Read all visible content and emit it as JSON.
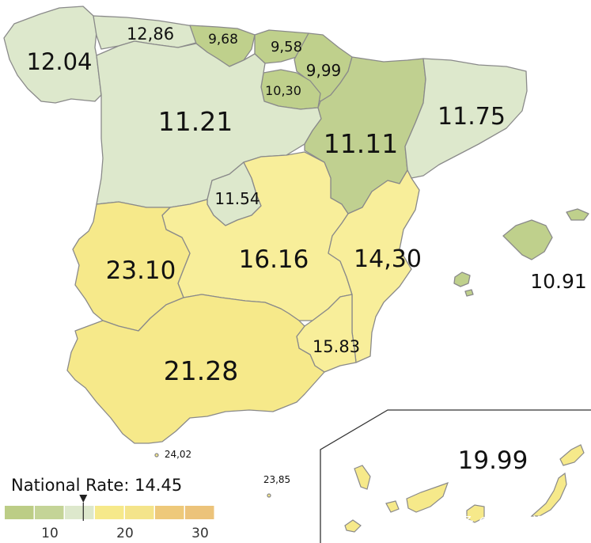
{
  "colors": {
    "rate_below_10": "#bfd08c",
    "rate_10_to_12": "#dde8cc",
    "rate_15_to_20": "#f8ee9a",
    "rate_20_to_25": "#f6e98a",
    "legend_bins": [
      "#bccd86",
      "#c4d497",
      "#dde8cc",
      "#f6e98a",
      "#f4e48a",
      "#eec97a",
      "#ecc37a"
    ],
    "outline": "#8a8a8a",
    "text": "#111111"
  },
  "regions": [
    {
      "name": "Galicia",
      "label": "12.04"
    },
    {
      "name": "Asturias",
      "label": "12,86"
    },
    {
      "name": "Cantabria",
      "label": "9,68"
    },
    {
      "name": "País Vasco",
      "label": "9,58"
    },
    {
      "name": "Navarra",
      "label": "9,99"
    },
    {
      "name": "La Rioja",
      "label": "10,30"
    },
    {
      "name": "Castilla y León",
      "label": "11.21"
    },
    {
      "name": "Aragón",
      "label": "11.11"
    },
    {
      "name": "Cataluña",
      "label": "11.75"
    },
    {
      "name": "Madrid",
      "label": "11.54"
    },
    {
      "name": "Extremadura",
      "label": "23.10"
    },
    {
      "name": "Castilla-La Mancha",
      "label": "16.16"
    },
    {
      "name": "Comunidad Valenciana",
      "label": "14,30"
    },
    {
      "name": "Islas Baleares",
      "label": "10.91"
    },
    {
      "name": "Región de Murcia",
      "label": "15.83"
    },
    {
      "name": "Andalucía",
      "label": "21.28"
    },
    {
      "name": "Ceuta",
      "label": "24,02"
    },
    {
      "name": "Melilla",
      "label": "23,85"
    },
    {
      "name": "Canarias",
      "label": "19.99"
    }
  ],
  "legend": {
    "title": "National Rate: 14.45",
    "national_rate": 14.45,
    "scale_min": 4,
    "scale_max": 32,
    "ticks": [
      {
        "value": 10,
        "label": "10"
      },
      {
        "value": 20,
        "label": "20"
      },
      {
        "value": 30,
        "label": "30"
      }
    ]
  },
  "watermark": "头条 @地球知识局"
}
